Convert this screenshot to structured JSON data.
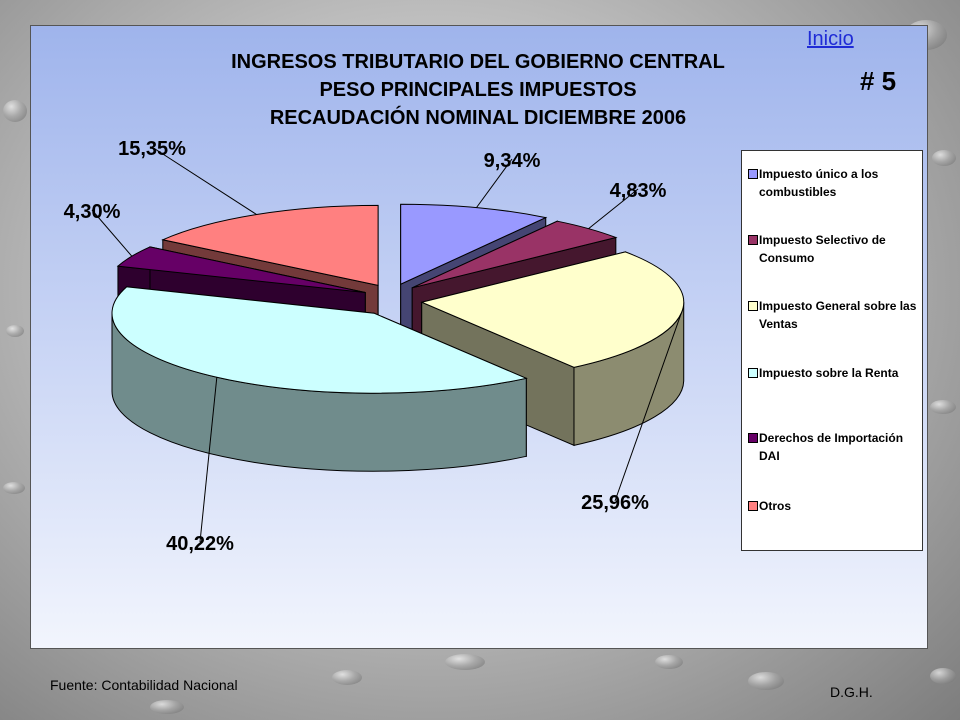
{
  "nav": {
    "inicio_label": "Inicio",
    "slide_number": "# 5"
  },
  "footer": {
    "source": "Fuente: Contabilidad Nacional",
    "author": "D.G.H."
  },
  "colors": {
    "slices": [
      "#9999ff",
      "#993366",
      "#ffffcc",
      "#ccffff",
      "#660066",
      "#ff8080"
    ]
  },
  "chart_data": {
    "type": "pie",
    "title": [
      "INGRESOS TRIBUTARIO DEL GOBIERNO CENTRAL",
      "PESO PRINCIPALES IMPUESTOS",
      "RECAUDACIÓN NOMINAL DICIEMBRE 2006"
    ],
    "legend_position": "right",
    "slices": [
      {
        "label": "Impuesto único a los combustibles",
        "value": 9.34,
        "display": "9,34%"
      },
      {
        "label": "Impuesto Selectivo de Consumo",
        "value": 4.83,
        "display": "4,83%"
      },
      {
        "label": "Impuesto General sobre las Ventas",
        "value": 25.96,
        "display": "25,96%"
      },
      {
        "label": "Impuesto sobre la Renta",
        "value": 40.22,
        "display": "40,22%"
      },
      {
        "label": "Derechos de Importación DAI",
        "value": 4.3,
        "display": "4,30%"
      },
      {
        "label": "Otros",
        "value": 15.35,
        "display": "15,35%"
      }
    ]
  }
}
